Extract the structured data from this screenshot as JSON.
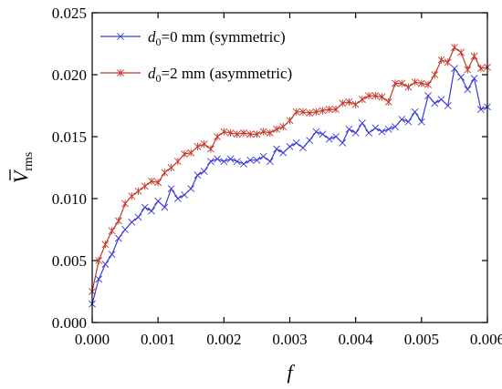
{
  "chart_data": {
    "type": "line",
    "xlabel": "f",
    "ylabel_main": "V",
    "ylabel_sub": "rms",
    "xlim": [
      0,
      0.006
    ],
    "ylim": [
      0,
      0.025
    ],
    "xticks": [
      {
        "value": 0,
        "label": "0.000"
      },
      {
        "value": 0.001,
        "label": "0.001"
      },
      {
        "value": 0.002,
        "label": "0.002"
      },
      {
        "value": 0.003,
        "label": "0.003"
      },
      {
        "value": 0.004,
        "label": "0.004"
      },
      {
        "value": 0.005,
        "label": "0.005"
      },
      {
        "value": 0.006,
        "label": "0.006"
      }
    ],
    "yticks": [
      {
        "value": 0,
        "label": "0.000"
      },
      {
        "value": 0.005,
        "label": "0.005"
      },
      {
        "value": 0.01,
        "label": "0.010"
      },
      {
        "value": 0.015,
        "label": "0.015"
      },
      {
        "value": 0.02,
        "label": "0.020"
      },
      {
        "value": 0.025,
        "label": "0.025"
      }
    ],
    "grid": false,
    "legend_position": "top-left",
    "series": [
      {
        "name_main": "d",
        "name_sub": "0",
        "name_rest": "=0 mm (symmetric)",
        "color": "#3a3ad6",
        "marker": "x",
        "x": [
          0.0,
          0.0001,
          0.0002,
          0.0003,
          0.0004,
          0.0005,
          0.0006,
          0.0007,
          0.0008,
          0.0009,
          0.001,
          0.0011,
          0.0012,
          0.0013,
          0.0014,
          0.0015,
          0.0016,
          0.0017,
          0.0018,
          0.0019,
          0.002,
          0.0021,
          0.0022,
          0.0023,
          0.0024,
          0.0025,
          0.0026,
          0.0027,
          0.0028,
          0.0029,
          0.003,
          0.0031,
          0.0032,
          0.0033,
          0.0034,
          0.0035,
          0.0036,
          0.0037,
          0.0038,
          0.0039,
          0.004,
          0.0041,
          0.0042,
          0.0043,
          0.0044,
          0.0045,
          0.0046,
          0.0047,
          0.0048,
          0.0049,
          0.005,
          0.0051,
          0.0052,
          0.0053,
          0.0054,
          0.0055,
          0.0056,
          0.0057,
          0.0058,
          0.0059,
          0.006
        ],
        "y": [
          0.0015,
          0.0035,
          0.0047,
          0.0055,
          0.0068,
          0.0075,
          0.0081,
          0.0085,
          0.0093,
          0.009,
          0.0098,
          0.0093,
          0.0108,
          0.01,
          0.0103,
          0.0108,
          0.0119,
          0.0122,
          0.013,
          0.0132,
          0.013,
          0.0132,
          0.013,
          0.0128,
          0.0131,
          0.0131,
          0.0134,
          0.013,
          0.014,
          0.0137,
          0.0142,
          0.0145,
          0.0141,
          0.0147,
          0.0154,
          0.0152,
          0.0148,
          0.015,
          0.0145,
          0.0156,
          0.0153,
          0.0161,
          0.0153,
          0.0157,
          0.0154,
          0.0156,
          0.0158,
          0.0164,
          0.0162,
          0.017,
          0.0162,
          0.0183,
          0.0177,
          0.018,
          0.0175,
          0.0205,
          0.0198,
          0.0188,
          0.0197,
          0.0172,
          0.0174
        ]
      },
      {
        "name_main": "d",
        "name_sub": "0",
        "name_rest": "=2 mm (asymmetric)",
        "color": "#c0392b",
        "marker": "star",
        "x": [
          0.0,
          0.0001,
          0.0002,
          0.0003,
          0.0004,
          0.0005,
          0.0006,
          0.0007,
          0.0008,
          0.0009,
          0.001,
          0.0011,
          0.0012,
          0.0013,
          0.0014,
          0.0015,
          0.0016,
          0.0017,
          0.0018,
          0.0019,
          0.002,
          0.0021,
          0.0022,
          0.0023,
          0.0024,
          0.0025,
          0.0026,
          0.0027,
          0.0028,
          0.0029,
          0.003,
          0.0031,
          0.0032,
          0.0033,
          0.0034,
          0.0035,
          0.0036,
          0.0037,
          0.0038,
          0.0039,
          0.004,
          0.0041,
          0.0042,
          0.0043,
          0.0044,
          0.0045,
          0.0046,
          0.0047,
          0.0048,
          0.0049,
          0.005,
          0.0051,
          0.0052,
          0.0053,
          0.0054,
          0.0055,
          0.0056,
          0.0057,
          0.0058,
          0.0059,
          0.006
        ],
        "y": [
          0.0025,
          0.005,
          0.0063,
          0.0074,
          0.0082,
          0.0096,
          0.0102,
          0.0106,
          0.011,
          0.0114,
          0.0113,
          0.0121,
          0.0125,
          0.013,
          0.0136,
          0.0137,
          0.0142,
          0.0144,
          0.014,
          0.015,
          0.0154,
          0.0153,
          0.0152,
          0.0153,
          0.0152,
          0.0152,
          0.0154,
          0.0153,
          0.0156,
          0.0158,
          0.0163,
          0.017,
          0.017,
          0.0169,
          0.017,
          0.0171,
          0.0172,
          0.0172,
          0.0177,
          0.0178,
          0.0176,
          0.018,
          0.0183,
          0.0183,
          0.0182,
          0.0178,
          0.0193,
          0.0193,
          0.019,
          0.0194,
          0.0193,
          0.0192,
          0.02,
          0.0212,
          0.021,
          0.0222,
          0.0218,
          0.0204,
          0.0215,
          0.0205,
          0.0206
        ]
      }
    ]
  }
}
